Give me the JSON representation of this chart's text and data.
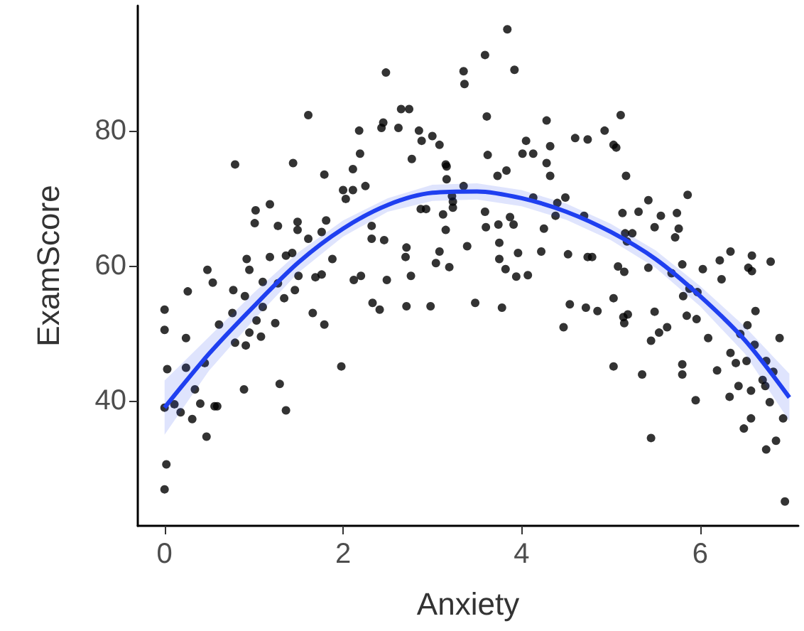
{
  "chart_data": {
    "type": "scatter",
    "xlabel": "Anxiety",
    "ylabel": "ExamScore",
    "xlim": [
      -0.3,
      7.1
    ],
    "ylim": [
      21.5,
      98.5
    ],
    "xticks": [
      0,
      2,
      4,
      6
    ],
    "yticks": [
      40,
      60,
      80
    ],
    "grid": false,
    "marker": "circle",
    "series": [
      {
        "color": "#000000",
        "x": [
          2.48,
          1.61,
          2.65,
          2.74,
          0.79,
          1.44,
          2.18,
          2.43,
          2.45,
          2.62,
          2.85,
          2.88,
          3.0,
          3.08,
          2.19,
          1.79,
          2.11,
          2.77,
          3.15,
          2.0,
          2.11,
          2.25,
          2.03,
          1.02,
          1.18,
          1.01,
          1.27,
          1.49,
          1.49,
          1.81,
          3.12,
          3.15,
          2.32,
          2.46,
          2.71,
          2.7,
          3.08,
          3.04,
          3.19,
          0.92,
          1.18,
          1.88,
          0.48,
          0.95,
          1.61,
          1.76,
          2.32,
          2.87,
          2.93,
          3.16,
          3.23,
          3.23,
          1.36,
          1.43,
          3.84,
          3.59,
          3.35,
          3.36,
          3.92,
          3.61,
          4.28,
          5.11,
          4.05,
          4.01,
          4.13,
          4.32,
          4.6,
          4.74,
          4.93,
          5.03,
          5.06,
          3.62,
          4.28,
          4.32,
          3.83,
          3.73,
          5.17,
          3.16,
          4.49,
          5.86,
          5.42,
          5.31,
          5.13,
          5.56,
          5.74,
          3.59,
          3.6,
          3.74,
          3.87,
          3.91,
          4.25,
          5.49,
          5.76,
          5.72,
          3.39,
          3.75,
          3.96,
          3.75,
          4.22,
          4.52,
          4.74,
          4.79,
          5.24,
          5.16,
          5.8,
          6.22,
          6.34,
          6.58,
          6.79,
          3.35,
          3.22,
          4.13,
          4.4,
          4.38,
          4.7,
          5.18,
          0.54,
          0.26,
          0.77,
          0.0,
          0.0,
          0.24,
          0.03,
          0.34,
          0.4,
          0.56,
          0.59,
          0.18,
          0.31,
          0.47,
          0.02,
          0.0,
          0.0,
          0.89,
          1.29,
          1.36,
          1.98,
          0.79,
          0.91,
          0.95,
          1.08,
          1.03,
          1.24,
          1.1,
          1.34,
          1.46,
          1.5,
          1.69,
          1.76,
          1.66,
          1.79,
          2.12,
          2.2,
          2.49,
          2.33,
          2.41,
          2.71,
          2.98,
          2.76,
          0.11,
          0.24,
          0.45,
          0.61,
          0.76,
          0.9,
          1.1,
          1.27,
          3.82,
          3.94,
          4.07,
          3.48,
          3.78,
          4.47,
          4.54,
          4.72,
          4.85,
          5.03,
          5.08,
          5.15,
          5.14,
          5.19,
          5.15,
          5.03,
          5.49,
          5.45,
          5.54,
          5.63,
          5.35,
          5.8,
          5.8,
          5.45,
          6.03,
          6.24,
          6.54,
          6.58,
          5.85,
          5.96,
          5.95,
          6.09,
          6.34,
          6.4,
          6.19,
          6.53,
          6.62,
          6.89,
          6.43,
          6.33,
          6.57,
          6.78,
          6.57,
          6.49,
          6.85,
          6.74,
          6.95,
          6.93,
          5.42,
          5.68,
          5.88,
          5.97,
          5.81,
          6.45,
          6.61,
          6.52,
          6.74,
          6.82,
          6.7,
          6.73
        ],
        "values": [
          88.6,
          82.3,
          83.2,
          83.2,
          75,
          75.2,
          80,
          80.4,
          81.2,
          80.4,
          80,
          78.5,
          79.2,
          77.9,
          76.6,
          73.5,
          74.3,
          75.8,
          75,
          71.2,
          71.2,
          71.8,
          69.9,
          68.2,
          69.1,
          66.3,
          65.9,
          66.5,
          65.3,
          66.7,
          67.6,
          65.3,
          64,
          63.8,
          62.7,
          61.3,
          62.1,
          60.4,
          59.8,
          61,
          61.3,
          61,
          59.4,
          59.4,
          64,
          65,
          65.9,
          68.4,
          68.4,
          72.8,
          69.5,
          68.6,
          61.5,
          61.9,
          95,
          91.2,
          88.8,
          86.9,
          89,
          82.1,
          81.5,
          82.3,
          78.5,
          76.6,
          76.6,
          77.7,
          78.9,
          78.7,
          80,
          77.9,
          77.5,
          76.4,
          75.2,
          73.3,
          74.1,
          73.3,
          73.3,
          74.7,
          70.1,
          70.5,
          69.7,
          68,
          67.8,
          67.4,
          67.8,
          68,
          65.7,
          66.1,
          67.2,
          66.1,
          65.5,
          65.7,
          65.5,
          64.2,
          62.9,
          63.4,
          61.9,
          61,
          62.1,
          61.7,
          61.3,
          61.3,
          64.8,
          64.8,
          60.2,
          60.8,
          62.1,
          61.5,
          60.6,
          71.8,
          70.3,
          70.1,
          69.3,
          67.4,
          67.4,
          63.6,
          57.5,
          56.2,
          56.4,
          53.5,
          50.5,
          49.3,
          44.7,
          41.7,
          39.6,
          39.2,
          39.2,
          38.3,
          37.3,
          34.7,
          30.6,
          26.9,
          39,
          41.7,
          42.5,
          38.6,
          45.1,
          48.6,
          48.2,
          50.1,
          49.5,
          51.9,
          51.5,
          53.9,
          55.2,
          56.4,
          58.5,
          58.3,
          58.7,
          53,
          51.3,
          57.9,
          58.5,
          57.9,
          54.5,
          53.5,
          54,
          54,
          58.5,
          39.5,
          44.9,
          45.6,
          51.3,
          53,
          55.5,
          57.6,
          57.4,
          59.5,
          58.4,
          58.6,
          54.5,
          53.8,
          50.9,
          54.3,
          53.8,
          53.3,
          55.2,
          59.9,
          59.1,
          52.4,
          52.8,
          51.5,
          45.1,
          53.2,
          48.9,
          50.1,
          50.9,
          43.9,
          45.4,
          43.9,
          34.5,
          59.5,
          58,
          59.7,
          59.2,
          52.6,
          52.1,
          40.1,
          49.3,
          47.1,
          45.6,
          44.5,
          51.2,
          53.3,
          49.3,
          42.2,
          40.6,
          41.5,
          39.8,
          37.4,
          35.9,
          34.1,
          32.8,
          25.1,
          37.4,
          59.7,
          58.9,
          56.6,
          56.1,
          55.5,
          49.9,
          48.3,
          45.9,
          45.9,
          44.3,
          43.1,
          42.2
        ]
      },
      {
        "type": "line",
        "marker": "none",
        "color": "#1f3ff0",
        "x": [
          0,
          0.5,
          1,
          1.5,
          2,
          2.5,
          3,
          3.5,
          4,
          4.5,
          5,
          5.5,
          6,
          6.5,
          7
        ],
        "values": [
          39,
          47,
          54,
          60.5,
          65.5,
          69,
          70.8,
          71,
          70,
          68,
          65,
          61,
          55.5,
          49,
          40.5
        ],
        "lower": [
          35,
          44.5,
          52,
          59,
          64.3,
          68,
          69.6,
          69.8,
          68.8,
          66.8,
          63.8,
          59.7,
          54,
          47,
          37
        ],
        "upper": [
          43,
          49.5,
          56,
          62,
          66.7,
          70,
          72,
          72.2,
          71.2,
          69.2,
          66.2,
          62.3,
          57,
          51,
          44
        ]
      }
    ]
  }
}
